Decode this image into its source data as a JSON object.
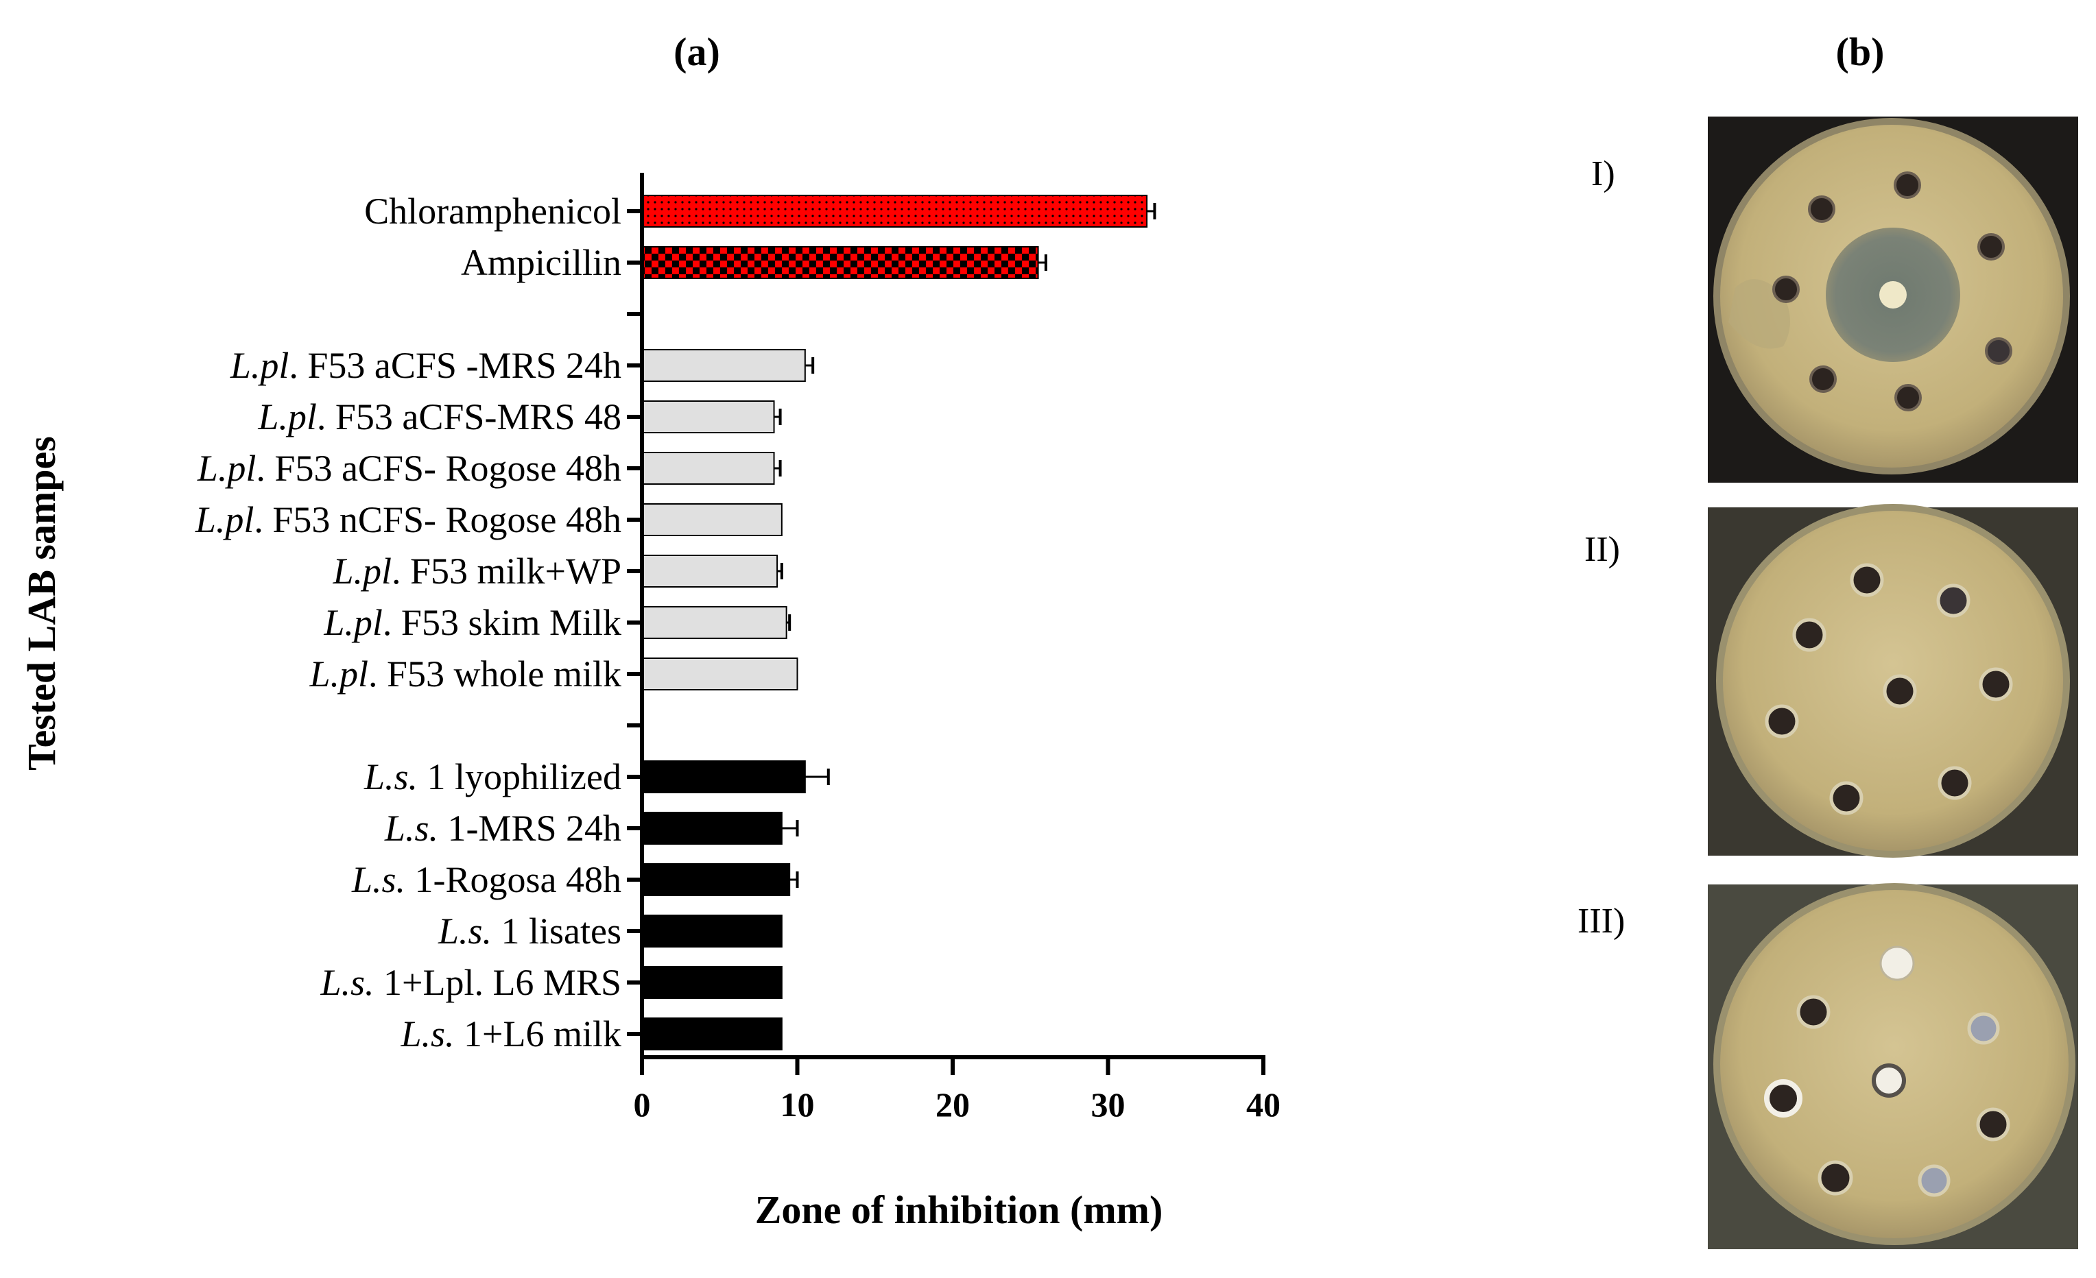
{
  "panel_labels": {
    "a": "(a)",
    "b": "(b)"
  },
  "chart_data": {
    "type": "bar",
    "orientation": "horizontal",
    "xlabel": "Zone of inhibition (mm)",
    "ylabel": "Tested LAB sampes",
    "xlim": [
      0,
      40
    ],
    "xticks": [
      0,
      10,
      20,
      30,
      40
    ],
    "xtick_labels": [
      "0",
      "10",
      "20",
      "30",
      "40"
    ],
    "bars": [
      {
        "label": "Chloramphenicol",
        "italic": "",
        "rest": "Chloramphenicol",
        "value": 32.5,
        "error": 0.5,
        "group": "antibiotic",
        "pattern": "dots"
      },
      {
        "label": "Ampicillin",
        "italic": "",
        "rest": "Ampicillin",
        "value": 25.5,
        "error": 0.5,
        "group": "antibiotic",
        "pattern": "checker"
      },
      {
        "label": "",
        "italic": "",
        "rest": "",
        "value": null,
        "error": null,
        "group": "gap",
        "pattern": ""
      },
      {
        "label": "L.pl. F53 aCFS -MRS 24h",
        "italic": "L.pl",
        "rest": ". F53 aCFS -MRS 24h",
        "value": 10.5,
        "error": 0.5,
        "group": "lpl",
        "pattern": "grey"
      },
      {
        "label": "L.pl. F53 aCFS-MRS 48",
        "italic": "L.pl",
        "rest": ". F53 aCFS-MRS 48",
        "value": 8.5,
        "error": 0.4,
        "group": "lpl",
        "pattern": "grey"
      },
      {
        "label": "L.pl. F53 aCFS- Rogose 48h",
        "italic": "L.pl",
        "rest": ". F53 aCFS- Rogose 48h",
        "value": 8.5,
        "error": 0.4,
        "group": "lpl",
        "pattern": "grey"
      },
      {
        "label": "L.pl. F53 nCFS- Rogose 48h",
        "italic": "L.pl",
        "rest": ". F53 nCFS- Rogose 48h",
        "value": 9.0,
        "error": 0,
        "group": "lpl",
        "pattern": "grey"
      },
      {
        "label": "L.pl. F53 milk+WP",
        "italic": "L.pl",
        "rest": ". F53 milk+WP",
        "value": 8.7,
        "error": 0.3,
        "group": "lpl",
        "pattern": "grey"
      },
      {
        "label": "L.pl. F53 skim Milk",
        "italic": "L.pl",
        "rest": ". F53 skim Milk",
        "value": 9.3,
        "error": 0.2,
        "group": "lpl",
        "pattern": "grey"
      },
      {
        "label": "L.pl. F53 whole milk",
        "italic": "L.pl",
        "rest": ". F53 whole milk",
        "value": 10.0,
        "error": 0,
        "group": "lpl",
        "pattern": "grey"
      },
      {
        "label": "",
        "italic": "",
        "rest": "",
        "value": null,
        "error": null,
        "group": "gap",
        "pattern": ""
      },
      {
        "label": "L.s. 1 lyophilized",
        "italic": "L.s.",
        "rest": " 1 lyophilized",
        "value": 10.5,
        "error": 1.5,
        "group": "ls",
        "pattern": "black"
      },
      {
        "label": "L.s. 1-MRS 24h",
        "italic": "L.s.",
        "rest": " 1-MRS 24h",
        "value": 9.0,
        "error": 1.0,
        "group": "ls",
        "pattern": "black"
      },
      {
        "label": "L.s. 1-Rogosa 48h",
        "italic": "L.s.",
        "rest": " 1-Rogosa 48h",
        "value": 9.5,
        "error": 0.5,
        "group": "ls",
        "pattern": "black"
      },
      {
        "label": "L.s. 1 lisates",
        "italic": "L.s.",
        "rest": " 1 lisates",
        "value": 9.0,
        "error": 0,
        "group": "ls",
        "pattern": "black"
      },
      {
        "label": "L.s. 1+Lpl. L6 MRS",
        "italic": "L.s.",
        "rest": " 1+Lpl. L6 MRS",
        "value": 9.0,
        "error": 0,
        "group": "ls",
        "pattern": "black"
      },
      {
        "label": "L.s. 1+L6 milk",
        "italic": "L.s.",
        "rest": " 1+L6 milk",
        "value": 9.0,
        "error": 0,
        "group": "ls",
        "pattern": "black"
      }
    ]
  },
  "plates": [
    {
      "label": "I)"
    },
    {
      "label": "II)"
    },
    {
      "label": "III)"
    }
  ],
  "colors": {
    "red": "#ff0000",
    "grey": "#e0e0e0",
    "black": "#000000",
    "agar": "#c9b98a"
  }
}
